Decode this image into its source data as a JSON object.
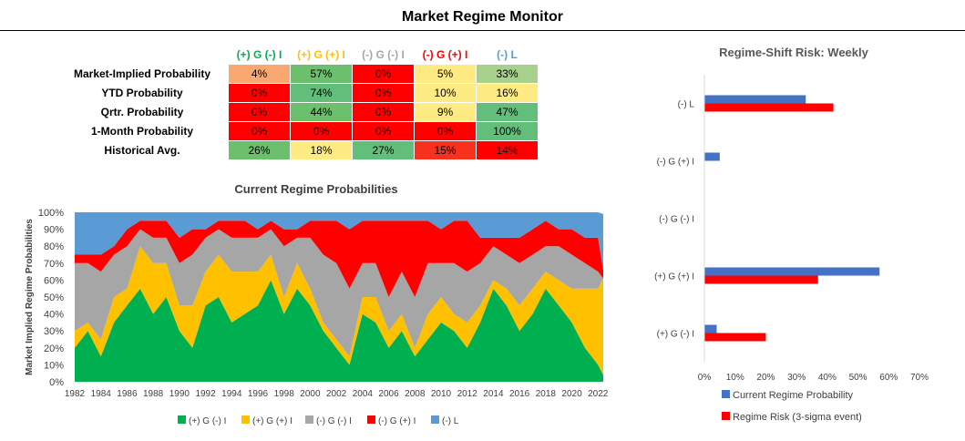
{
  "title": "Market Regime Monitor",
  "regimes": [
    "(+) G (-) I",
    "(+) G (+) I",
    "(-) G (-) I",
    "(-) G (+) I",
    "(-) L"
  ],
  "regime_colors": [
    "#00b050",
    "#ffc000",
    "#a6a6a6",
    "#ff0000",
    "#5b9bd5"
  ],
  "header_colors": [
    "#00b050",
    "#ffc000",
    "#a6a6a6",
    "#ff0000",
    "#5b9bd5"
  ],
  "table": {
    "rows": [
      {
        "label": "Market-Implied Probability",
        "values": [
          "4%",
          "57%",
          "0%",
          "5%",
          "33%"
        ],
        "colors": [
          "#f8a870",
          "#6cbf6c",
          "#ff0000",
          "#ffeb84",
          "#a8d08d"
        ]
      },
      {
        "label": "YTD Probability",
        "values": [
          "0%",
          "74%",
          "0%",
          "10%",
          "16%"
        ],
        "colors": [
          "#ff0000",
          "#63be7b",
          "#ff0000",
          "#ffeb84",
          "#ffeb84"
        ]
      },
      {
        "label": "Qrtr. Probability",
        "values": [
          "0%",
          "44%",
          "0%",
          "9%",
          "47%"
        ],
        "colors": [
          "#ff0000",
          "#6cbf6c",
          "#ff0000",
          "#ffeb84",
          "#63be7b"
        ]
      },
      {
        "label": "1-Month Probability",
        "values": [
          "0%",
          "0%",
          "0%",
          "0%",
          "100%"
        ],
        "colors": [
          "#ff0000",
          "#ff0000",
          "#ff0000",
          "#ff0000",
          "#63be7b"
        ]
      },
      {
        "label": "Historical Avg.",
        "values": [
          "26%",
          "18%",
          "27%",
          "15%",
          "14%"
        ],
        "colors": [
          "#6cbf6c",
          "#ffeb84",
          "#63be7b",
          "#f8301e",
          "#ff0000"
        ]
      }
    ]
  },
  "chart_data": [
    {
      "type": "area",
      "title": "Current Regime Probabilities",
      "ylabel": "Market Implied Regime Probabilities",
      "xlabel": "",
      "ylim": [
        0,
        100
      ],
      "yticks": [
        "0%",
        "10%",
        "20%",
        "30%",
        "40%",
        "50%",
        "60%",
        "70%",
        "80%",
        "90%",
        "100%"
      ],
      "xticks": [
        "1982",
        "1984",
        "1986",
        "1988",
        "1990",
        "1992",
        "1994",
        "1996",
        "1998",
        "2000",
        "2002",
        "2004",
        "2006",
        "2008",
        "2010",
        "2012",
        "2014",
        "2016",
        "2018",
        "2020",
        "2022"
      ],
      "xlim": [
        1982,
        2022.4
      ],
      "stacked": true,
      "legend_position": "bottom",
      "series": [
        {
          "name": "(+) G (-) I",
          "color": "#00b050",
          "x": [
            1982,
            1983,
            1984,
            1985,
            1986,
            1987,
            1988,
            1989,
            1990,
            1991,
            1992,
            1993,
            1994,
            1995,
            1996,
            1997,
            1998,
            1999,
            2000,
            2001,
            2002,
            2003,
            2004,
            2005,
            2006,
            2007,
            2008,
            2009,
            2010,
            2011,
            2012,
            2013,
            2014,
            2015,
            2016,
            2017,
            2018,
            2019,
            2020,
            2021,
            2022,
            2022.4
          ],
          "values": [
            20,
            30,
            15,
            35,
            45,
            55,
            40,
            50,
            30,
            20,
            45,
            50,
            35,
            40,
            45,
            60,
            40,
            55,
            45,
            30,
            20,
            10,
            40,
            35,
            20,
            30,
            15,
            25,
            35,
            30,
            20,
            35,
            55,
            45,
            30,
            40,
            55,
            45,
            35,
            20,
            10,
            4
          ]
        },
        {
          "name": "(+) G (+) I",
          "color": "#ffc000",
          "x": [
            1982,
            1983,
            1984,
            1985,
            1986,
            1987,
            1988,
            1989,
            1990,
            1991,
            1992,
            1993,
            1994,
            1995,
            1996,
            1997,
            1998,
            1999,
            2000,
            2001,
            2002,
            2003,
            2004,
            2005,
            2006,
            2007,
            2008,
            2009,
            2010,
            2011,
            2012,
            2013,
            2014,
            2015,
            2016,
            2017,
            2018,
            2019,
            2020,
            2021,
            2022,
            2022.4
          ],
          "values": [
            10,
            5,
            10,
            15,
            10,
            25,
            30,
            20,
            15,
            25,
            20,
            25,
            30,
            25,
            20,
            15,
            10,
            15,
            10,
            5,
            5,
            5,
            10,
            15,
            10,
            10,
            5,
            15,
            15,
            10,
            15,
            10,
            5,
            10,
            15,
            15,
            10,
            15,
            20,
            35,
            45,
            57
          ]
        },
        {
          "name": "(-) G (-) I",
          "color": "#a6a6a6",
          "x": [
            1982,
            1983,
            1984,
            1985,
            1986,
            1987,
            1988,
            1989,
            1990,
            1991,
            1992,
            1993,
            1994,
            1995,
            1996,
            1997,
            1998,
            1999,
            2000,
            2001,
            2002,
            2003,
            2004,
            2005,
            2006,
            2007,
            2008,
            2009,
            2010,
            2011,
            2012,
            2013,
            2014,
            2015,
            2016,
            2017,
            2018,
            2019,
            2020,
            2021,
            2022,
            2022.4
          ],
          "values": [
            40,
            35,
            40,
            25,
            25,
            10,
            15,
            15,
            25,
            30,
            20,
            15,
            20,
            20,
            20,
            15,
            30,
            15,
            30,
            40,
            45,
            40,
            20,
            20,
            20,
            25,
            30,
            30,
            20,
            30,
            30,
            25,
            20,
            20,
            25,
            20,
            15,
            20,
            20,
            15,
            10,
            0
          ]
        },
        {
          "name": "(-) G (+) I",
          "color": "#ff0000",
          "x": [
            1982,
            1983,
            1984,
            1985,
            1986,
            1987,
            1988,
            1989,
            1990,
            1991,
            1992,
            1993,
            1994,
            1995,
            1996,
            1997,
            1998,
            1999,
            2000,
            2001,
            2002,
            2003,
            2004,
            2005,
            2006,
            2007,
            2008,
            2009,
            2010,
            2011,
            2012,
            2013,
            2014,
            2015,
            2016,
            2017,
            2018,
            2019,
            2020,
            2021,
            2022,
            2022.4
          ],
          "values": [
            5,
            5,
            10,
            5,
            10,
            5,
            10,
            10,
            15,
            15,
            5,
            5,
            10,
            10,
            5,
            5,
            10,
            5,
            10,
            20,
            25,
            35,
            25,
            25,
            45,
            30,
            45,
            25,
            20,
            25,
            30,
            15,
            5,
            10,
            15,
            15,
            15,
            10,
            15,
            15,
            20,
            5
          ]
        },
        {
          "name": "(-) L",
          "color": "#5b9bd5",
          "x": [
            1982,
            1983,
            1984,
            1985,
            1986,
            1987,
            1988,
            1989,
            1990,
            1991,
            1992,
            1993,
            1994,
            1995,
            1996,
            1997,
            1998,
            1999,
            2000,
            2001,
            2002,
            2003,
            2004,
            2005,
            2006,
            2007,
            2008,
            2009,
            2010,
            2011,
            2012,
            2013,
            2014,
            2015,
            2016,
            2017,
            2018,
            2019,
            2020,
            2021,
            2022,
            2022.4
          ],
          "values": [
            25,
            25,
            25,
            20,
            10,
            5,
            5,
            5,
            15,
            10,
            10,
            5,
            5,
            5,
            10,
            5,
            10,
            10,
            5,
            5,
            5,
            10,
            5,
            5,
            5,
            5,
            5,
            5,
            10,
            5,
            5,
            15,
            15,
            15,
            15,
            10,
            5,
            10,
            10,
            15,
            15,
            33
          ]
        }
      ]
    },
    {
      "type": "bar",
      "orientation": "horizontal",
      "title": "Regime-Shift Risk: Weekly",
      "categories": [
        "(-) L",
        "(-) G (+) I",
        "(-) G (-) I",
        "(+) G (+) I",
        "(+) G (-) I"
      ],
      "xlim": [
        0,
        70
      ],
      "xticks": [
        "0%",
        "10%",
        "20%",
        "30%",
        "40%",
        "50%",
        "60%",
        "70%"
      ],
      "legend_position": "bottom",
      "series": [
        {
          "name": "Current Regime Probability",
          "color": "#4472c4",
          "values": [
            33,
            5,
            0,
            57,
            4
          ]
        },
        {
          "name": "Regime Risk (3-sigma event)",
          "color": "#ff0000",
          "values": [
            42,
            0,
            0,
            37,
            20
          ]
        }
      ]
    }
  ]
}
